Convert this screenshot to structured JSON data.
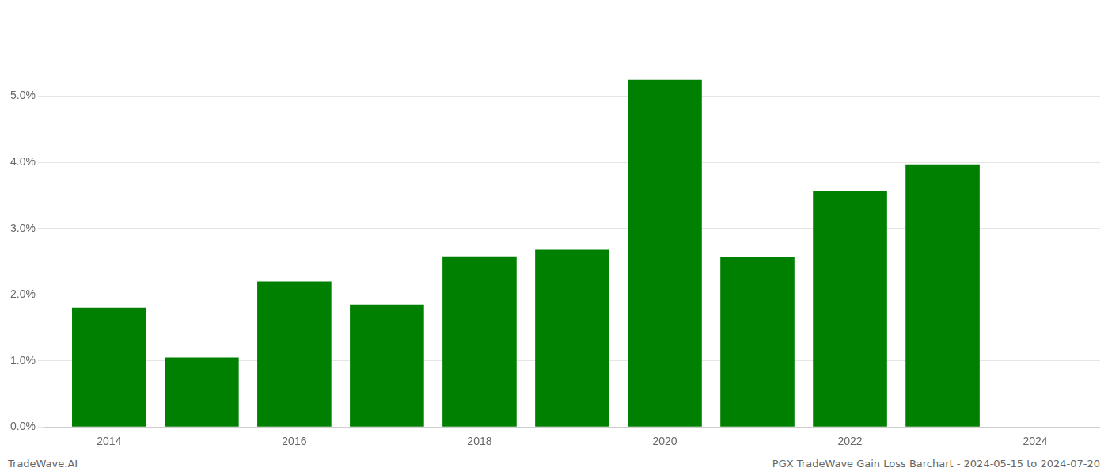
{
  "chart_data": {
    "type": "bar",
    "x": [
      2014,
      2015,
      2016,
      2017,
      2018,
      2019,
      2020,
      2021,
      2022,
      2023
    ],
    "values": [
      0.018,
      0.0105,
      0.022,
      0.0185,
      0.0258,
      0.0268,
      0.0525,
      0.0257,
      0.0357,
      0.0397
    ],
    "color": "#008000",
    "xlim": [
      2013.3,
      2024.7
    ],
    "xticks": [
      2014,
      2016,
      2018,
      2020,
      2022,
      2024
    ],
    "ylim": [
      0,
      0.062
    ],
    "yticks": [
      {
        "value": 0.0,
        "label": "0.0%"
      },
      {
        "value": 0.01,
        "label": "1.0%"
      },
      {
        "value": 0.02,
        "label": "2.0%"
      },
      {
        "value": 0.03,
        "label": "3.0%"
      },
      {
        "value": 0.04,
        "label": "4.0%"
      },
      {
        "value": 0.05,
        "label": "5.0%"
      }
    ],
    "grid": true,
    "annotations": [
      "TradeWave.AI",
      "PGX TradeWave Gain Loss Barchart - 2024-05-15 to 2024-07-20"
    ]
  }
}
